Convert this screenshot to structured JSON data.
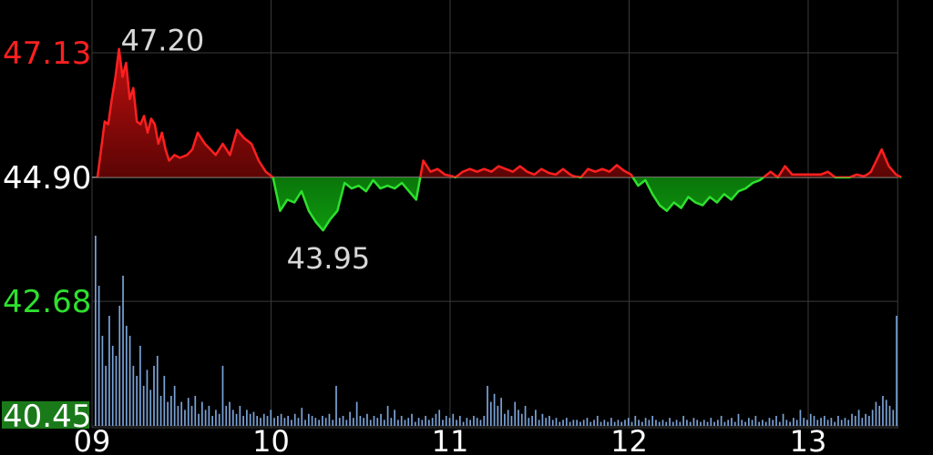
{
  "colors": {
    "up": "#ff2020",
    "down": "#2ee02e",
    "base": "#ffffff",
    "grid": "#3a3a3a",
    "volume": "#7aa2d6",
    "background": "#000000",
    "low_label_bg": "#1a7a1a"
  },
  "chart_data": {
    "type": "line",
    "title": "",
    "xlabel": "",
    "ylabel": "",
    "base_price": 44.9,
    "ylim": [
      40.45,
      47.13
    ],
    "y_ticks": [
      {
        "label": "47.13",
        "value": 47.13,
        "color": "up"
      },
      {
        "label": "44.90",
        "value": 44.9,
        "color": "base"
      },
      {
        "label": "42.68",
        "value": 42.68,
        "color": "down"
      },
      {
        "label": "40.45",
        "value": 40.45,
        "color": "down_badge"
      }
    ],
    "x_ticks": [
      "09",
      "10",
      "11",
      "12",
      "13"
    ],
    "annotations": {
      "high": {
        "label": "47.20",
        "value": 47.2
      },
      "low": {
        "label": "43.95",
        "value": 43.95
      }
    },
    "price_series": {
      "x": [
        0,
        0.04,
        0.06,
        0.08,
        0.1,
        0.12,
        0.14,
        0.16,
        0.18,
        0.2,
        0.22,
        0.24,
        0.26,
        0.28,
        0.3,
        0.32,
        0.34,
        0.36,
        0.38,
        0.4,
        0.43,
        0.46,
        0.5,
        0.53,
        0.56,
        0.6,
        0.63,
        0.66,
        0.7,
        0.74,
        0.78,
        0.82,
        0.86,
        0.9,
        0.94,
        0.98,
        1.02,
        1.06,
        1.1,
        1.14,
        1.18,
        1.22,
        1.26,
        1.3,
        1.34,
        1.38,
        1.42,
        1.46,
        1.5,
        1.54,
        1.58,
        1.62,
        1.66,
        1.7,
        1.74,
        1.78,
        1.82,
        1.86,
        1.9,
        1.94,
        1.98,
        2.0,
        2.04,
        2.08,
        2.12,
        2.16,
        2.2,
        2.24,
        2.28,
        2.32,
        2.36,
        2.4,
        2.44,
        2.48,
        2.52,
        2.56,
        2.6,
        2.64,
        2.66,
        2.7,
        2.74,
        2.78,
        2.82,
        2.86,
        2.9,
        2.94,
        2.98,
        3.02,
        3.06,
        3.1,
        3.14,
        3.18,
        3.22,
        3.26,
        3.3,
        3.34,
        3.38,
        3.42,
        3.46,
        3.5,
        3.54,
        3.58,
        3.62,
        3.66,
        3.7,
        3.72,
        3.76,
        3.8,
        3.84,
        3.88,
        3.92,
        3.96,
        4.0,
        4.04,
        4.08,
        4.12,
        4.16,
        4.2,
        4.24,
        4.28,
        4.3,
        4.32,
        4.35,
        4.38,
        4.42,
        4.46,
        4.49
      ],
      "y": [
        44.9,
        45.9,
        45.85,
        46.3,
        46.7,
        47.2,
        46.7,
        46.95,
        46.3,
        46.5,
        45.9,
        45.85,
        46.0,
        45.7,
        45.95,
        45.85,
        45.5,
        45.7,
        45.4,
        45.2,
        45.3,
        45.25,
        45.3,
        45.4,
        45.7,
        45.5,
        45.4,
        45.3,
        45.5,
        45.3,
        45.75,
        45.6,
        45.5,
        45.2,
        45.0,
        44.9,
        44.3,
        44.5,
        44.45,
        44.65,
        44.3,
        44.1,
        43.95,
        44.15,
        44.3,
        44.8,
        44.7,
        44.75,
        44.65,
        44.85,
        44.7,
        44.75,
        44.7,
        44.8,
        44.65,
        44.5,
        45.2,
        45.0,
        45.05,
        44.95,
        44.92,
        44.9,
        45.0,
        45.05,
        45.0,
        45.05,
        45.0,
        45.1,
        45.05,
        45.0,
        45.1,
        45.0,
        44.95,
        45.05,
        44.98,
        44.95,
        45.05,
        44.95,
        44.92,
        44.9,
        45.05,
        45.0,
        45.05,
        45.0,
        45.12,
        45.02,
        44.95,
        44.75,
        44.85,
        44.6,
        44.4,
        44.3,
        44.45,
        44.35,
        44.55,
        44.45,
        44.4,
        44.55,
        44.45,
        44.6,
        44.5,
        44.65,
        44.7,
        44.8,
        44.85,
        44.9,
        45.0,
        44.9,
        45.1,
        44.95,
        44.95,
        44.95,
        44.95,
        44.95,
        45.0,
        44.9,
        44.9,
        44.9,
        44.95,
        44.92,
        44.95,
        45.0,
        45.2,
        45.4,
        45.1,
        44.95,
        44.9
      ]
    },
    "volume_series": {
      "max": 1.0,
      "values": [
        0.95,
        0.7,
        0.45,
        0.3,
        0.55,
        0.4,
        0.35,
        0.6,
        0.75,
        0.5,
        0.45,
        0.3,
        0.25,
        0.4,
        0.2,
        0.28,
        0.18,
        0.3,
        0.35,
        0.15,
        0.25,
        0.12,
        0.15,
        0.2,
        0.1,
        0.12,
        0.08,
        0.14,
        0.1,
        0.15,
        0.06,
        0.12,
        0.08,
        0.1,
        0.05,
        0.08,
        0.06,
        0.3,
        0.1,
        0.12,
        0.08,
        0.06,
        0.1,
        0.05,
        0.08,
        0.06,
        0.07,
        0.05,
        0.04,
        0.06,
        0.05,
        0.08,
        0.04,
        0.05,
        0.06,
        0.04,
        0.05,
        0.03,
        0.06,
        0.04,
        0.09,
        0.03,
        0.06,
        0.05,
        0.04,
        0.03,
        0.05,
        0.04,
        0.06,
        0.03,
        0.2,
        0.04,
        0.05,
        0.03,
        0.07,
        0.04,
        0.12,
        0.05,
        0.04,
        0.06,
        0.03,
        0.05,
        0.04,
        0.06,
        0.03,
        0.1,
        0.04,
        0.08,
        0.03,
        0.05,
        0.03,
        0.04,
        0.06,
        0.02,
        0.04,
        0.03,
        0.05,
        0.03,
        0.04,
        0.06,
        0.08,
        0.03,
        0.05,
        0.04,
        0.06,
        0.03,
        0.05,
        0.02,
        0.04,
        0.03,
        0.05,
        0.04,
        0.03,
        0.05,
        0.2,
        0.12,
        0.16,
        0.1,
        0.14,
        0.06,
        0.08,
        0.05,
        0.12,
        0.08,
        0.06,
        0.1,
        0.04,
        0.05,
        0.08,
        0.03,
        0.06,
        0.04,
        0.05,
        0.03,
        0.04,
        0.02,
        0.03,
        0.04,
        0.02,
        0.03,
        0.03,
        0.02,
        0.03,
        0.04,
        0.02,
        0.03,
        0.05,
        0.02,
        0.03,
        0.02,
        0.04,
        0.02,
        0.03,
        0.02,
        0.03,
        0.04,
        0.02,
        0.05,
        0.03,
        0.02,
        0.04,
        0.03,
        0.05,
        0.03,
        0.02,
        0.03,
        0.02,
        0.04,
        0.02,
        0.03,
        0.02,
        0.05,
        0.03,
        0.02,
        0.04,
        0.03,
        0.02,
        0.03,
        0.02,
        0.04,
        0.02,
        0.03,
        0.05,
        0.02,
        0.03,
        0.04,
        0.02,
        0.06,
        0.03,
        0.02,
        0.04,
        0.03,
        0.05,
        0.02,
        0.03,
        0.02,
        0.04,
        0.03,
        0.05,
        0.02,
        0.06,
        0.03,
        0.02,
        0.04,
        0.03,
        0.08,
        0.04,
        0.03,
        0.06,
        0.05,
        0.03,
        0.04,
        0.05,
        0.03,
        0.04,
        0.02,
        0.05,
        0.03,
        0.04,
        0.03,
        0.06,
        0.05,
        0.08,
        0.04,
        0.06,
        0.05,
        0.08,
        0.12,
        0.1,
        0.15,
        0.13,
        0.1,
        0.08,
        0.55
      ]
    }
  }
}
